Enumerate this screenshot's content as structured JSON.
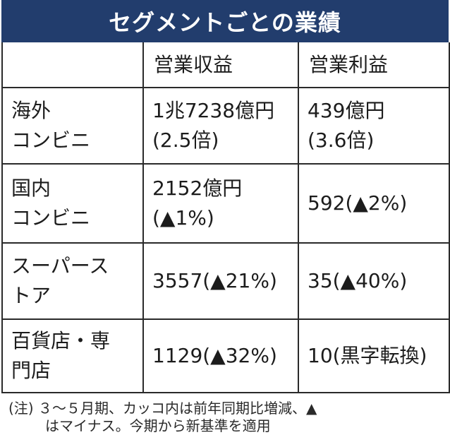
{
  "title": "セグメントごとの業績",
  "table": {
    "headers": [
      "",
      "営業収益",
      "営業利益"
    ],
    "rows": [
      {
        "segment": [
          "海外",
          "コンビニ"
        ],
        "revenue": [
          "1兆7238億円",
          "(2.5倍)"
        ],
        "operating_profit": [
          "439億円",
          "(3.6倍)"
        ]
      },
      {
        "segment": [
          "国内",
          "コンビニ"
        ],
        "revenue": [
          "2152億円",
          "(▲1%)"
        ],
        "operating_profit": [
          "592(▲2%)"
        ]
      },
      {
        "segment": [
          "スーパース",
          "トア"
        ],
        "revenue": [
          "3557(▲21%)"
        ],
        "operating_profit": [
          "35(▲40%)"
        ]
      },
      {
        "segment": [
          "百貨店・専",
          "門店"
        ],
        "revenue": [
          "1129(▲32%)"
        ],
        "operating_profit": [
          "10(黒字転換)"
        ]
      }
    ]
  },
  "note": [
    "(注) ３～５月期、カッコ内は前年同期比増減、▲",
    "はマイナス。今期から新基準を適用"
  ],
  "colors": {
    "title_background": "#223d6d",
    "title_text": "#ffffff",
    "border": "#2a2a2a",
    "text": "#1c1c1c"
  }
}
